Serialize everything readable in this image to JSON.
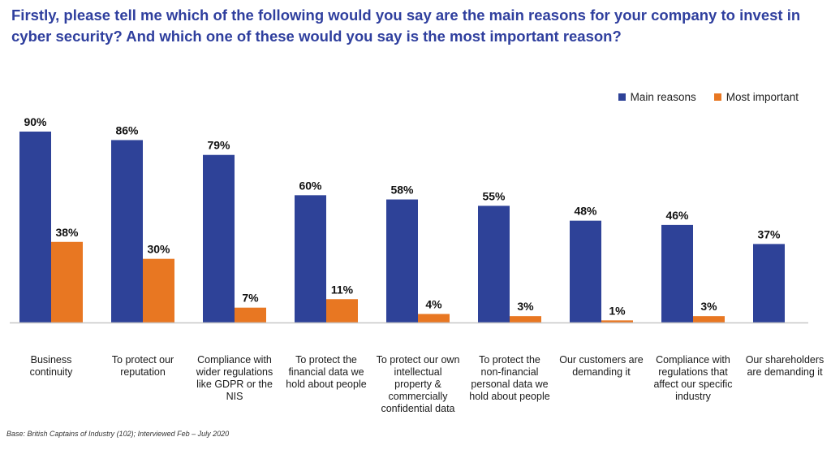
{
  "title": "Firstly, please tell me which of the following would you say are the main reasons for your company to invest in cyber security? And which one of these would you say is the most important reason?",
  "footnote": "Base: British Captains of Industry (102); Interviewed Feb – July 2020",
  "colors": {
    "main": "#2e4298",
    "important": "#e87722",
    "axis": "#c8c8c8"
  },
  "chart_data": {
    "type": "bar",
    "categories": [
      "Business continuity",
      "To protect our reputation",
      "Compliance with wider regulations like GDPR or the NIS",
      "To protect the financial data we hold about people",
      "To protect our own intellectual property & commercially confidential data",
      "To protect the non-financial personal data we hold about people",
      "Our customers are demanding it",
      "Compliance with regulations that affect our specific industry",
      "Our shareholders are demanding it"
    ],
    "series": [
      {
        "name": "Main reasons",
        "values": [
          90,
          86,
          79,
          60,
          58,
          55,
          48,
          46,
          37
        ]
      },
      {
        "name": "Most important",
        "values": [
          38,
          30,
          7,
          11,
          4,
          3,
          1,
          3,
          null
        ]
      }
    ],
    "unit": "%",
    "ylim": [
      0,
      100
    ],
    "grid": false,
    "legend": "top-right"
  }
}
